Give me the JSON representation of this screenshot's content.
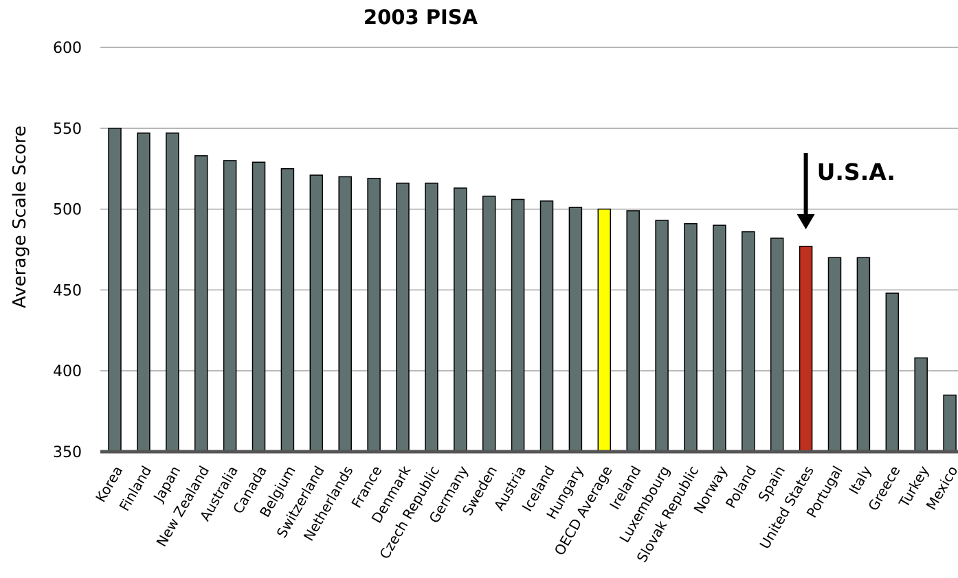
{
  "chart_data": {
    "type": "bar",
    "title": "2003 PISA",
    "xlabel": "",
    "ylabel": "Average Scale Score",
    "ylim": [
      350,
      600
    ],
    "yticks": [
      350,
      400,
      450,
      500,
      550,
      600
    ],
    "grid": true,
    "legend": "none",
    "categories": [
      "Korea",
      "Finland",
      "Japan",
      "New Zealand",
      "Australia",
      "Canada",
      "Belgium",
      "Switzerland",
      "Netherlands",
      "France",
      "Denmark",
      "Czech Republic",
      "Germany",
      "Sweden",
      "Austria",
      "Iceland",
      "Hungary",
      "OECD Average",
      "Ireland",
      "Luxembourg",
      "Slovak Republic",
      "Norway",
      "Poland",
      "Spain",
      "United States",
      "Portugal",
      "Italy",
      "Greece",
      "Turkey",
      "Mexico"
    ],
    "values": [
      550,
      547,
      547,
      533,
      530,
      529,
      525,
      521,
      520,
      519,
      516,
      516,
      513,
      508,
      506,
      505,
      501,
      500,
      499,
      493,
      491,
      490,
      486,
      482,
      477,
      470,
      470,
      448,
      408,
      385
    ],
    "colors": {
      "default": "#5f7170",
      "OECD Average": "#ffff00",
      "United States": "#c0301e"
    },
    "annotation": {
      "label": "U.S.A.",
      "target": "United States"
    }
  }
}
